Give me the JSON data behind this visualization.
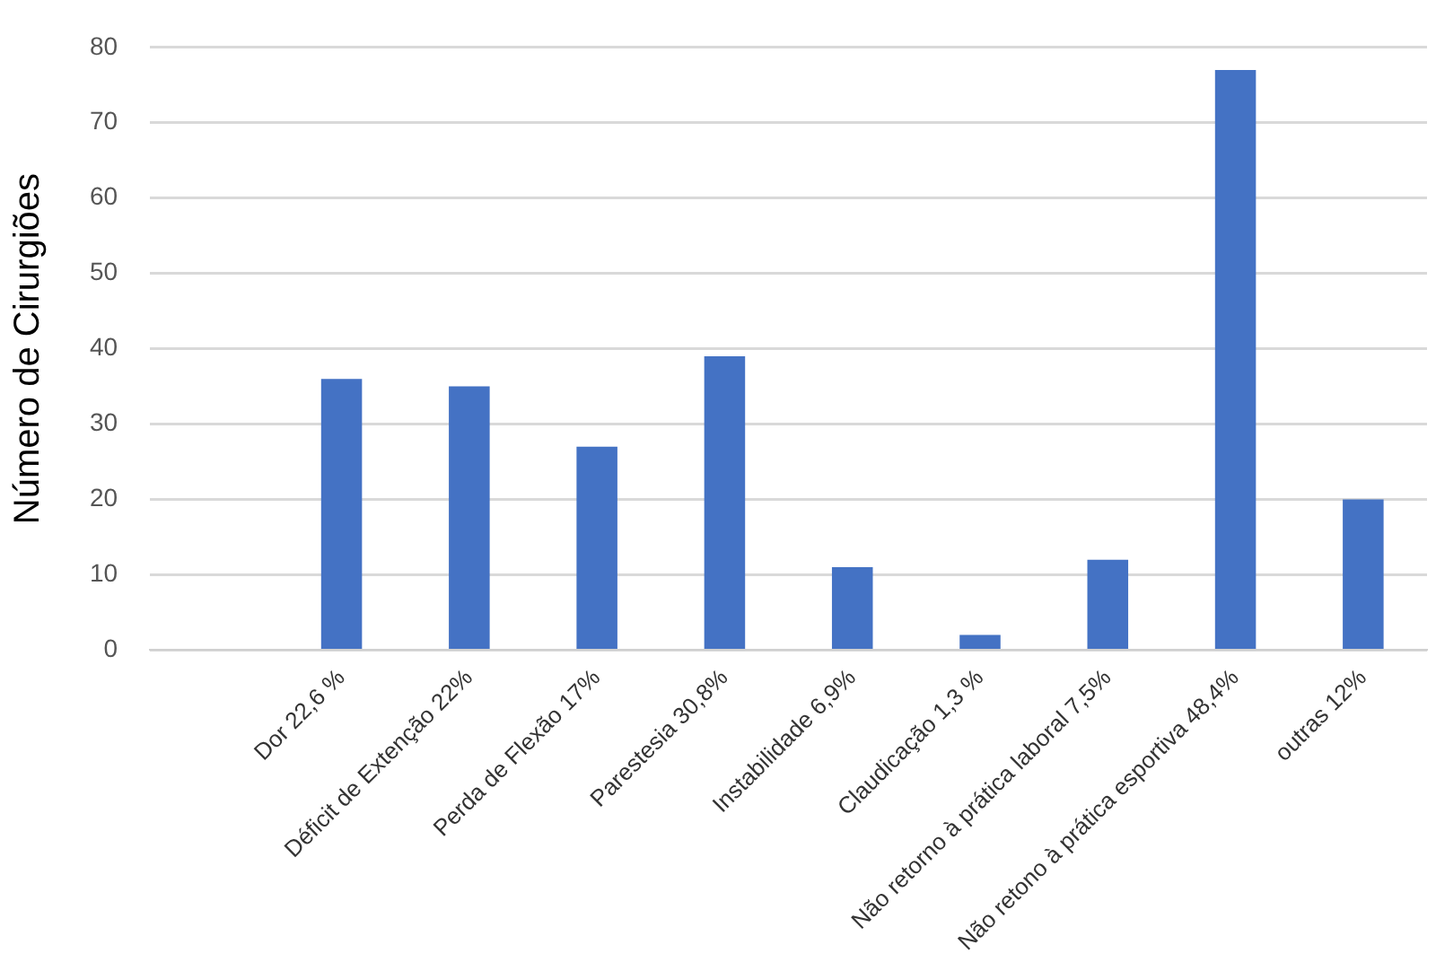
{
  "chart_data": {
    "type": "bar",
    "ylabel": "Número de Cirurgiões",
    "categories": [
      null,
      "Dor 22,6 %",
      "Déficit de Extenção 22%",
      "Perda de Flexão 17%",
      "Parestesia 30,8%",
      "Instabilidade 6,9%",
      "Claudicação 1,3 %",
      "Não retorno à prática laboral 7,5%",
      "Não retono à prática esportiva 48,4%",
      "outras 12%"
    ],
    "values": [
      null,
      36,
      35,
      27,
      39,
      11,
      2,
      12,
      77,
      20
    ],
    "color": "#4472c4",
    "ylim": [
      0,
      80
    ],
    "yticks": [
      0,
      10,
      20,
      30,
      40,
      50,
      60,
      70,
      80
    ],
    "grid": "y"
  }
}
